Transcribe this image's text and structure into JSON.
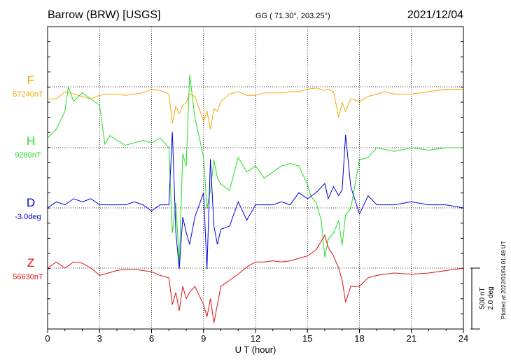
{
  "header": {
    "station": "Barrow (BRW)  [USGS]",
    "coords": "GG ( 71.30°, 203.25°)",
    "date": "2021/12/04"
  },
  "footer": {
    "plotted": "Plotted at 2022/01/04 01:49 UT"
  },
  "scale": {
    "nt": "500 nT",
    "deg": "2.0 deg"
  },
  "chart_data": {
    "type": "line",
    "xlabel": "U T (hour)",
    "xlim": [
      0,
      24
    ],
    "xticks": [
      "0",
      "3",
      "6",
      "9",
      "12",
      "15",
      "18",
      "21",
      "24"
    ],
    "grid": true,
    "series": [
      {
        "name": "F",
        "baseline": "57240nT",
        "color": "#f5a800",
        "x": [
          0,
          0.5,
          1,
          1.5,
          2,
          2.5,
          3,
          3.5,
          4,
          4.5,
          5,
          5.5,
          6,
          6.5,
          7,
          7.2,
          7.4,
          7.6,
          7.8,
          8,
          8.2,
          8.5,
          9,
          9.2,
          9.4,
          9.6,
          9.8,
          10,
          10.5,
          11,
          11.5,
          12,
          12.5,
          13,
          13.5,
          14,
          14.5,
          15,
          15.5,
          16,
          16.2,
          16.5,
          16.8,
          17,
          17.2,
          17.5,
          18,
          18.5,
          19,
          19.5,
          20,
          21,
          22,
          23,
          24
        ],
        "y": [
          -100,
          -100,
          -40,
          -60,
          -80,
          -100,
          -70,
          -60,
          -60,
          -70,
          -60,
          -50,
          -20,
          -30,
          -60,
          -300,
          -160,
          -220,
          -150,
          -130,
          -60,
          -80,
          -280,
          -200,
          -350,
          -180,
          -200,
          -120,
          -60,
          -40,
          -70,
          -70,
          -50,
          -50,
          -50,
          -40,
          -40,
          -20,
          -10,
          -30,
          -20,
          -40,
          -250,
          -130,
          -200,
          -100,
          -120,
          -80,
          -60,
          -40,
          -60,
          -60,
          -40,
          -20,
          -20
        ]
      },
      {
        "name": "H",
        "baseline": "9280nT",
        "color": "#22dd22",
        "x": [
          0,
          0.5,
          1,
          1.2,
          1.5,
          2,
          2.5,
          3,
          3.3,
          3.6,
          4,
          4.5,
          5,
          5.5,
          6,
          6.5,
          7,
          7.2,
          7.4,
          7.6,
          7.8,
          8,
          8.2,
          8.5,
          9,
          9.2,
          9.4,
          9.6,
          9.8,
          10,
          10.5,
          11,
          11.5,
          12,
          12.5,
          13,
          13.5,
          14,
          14.5,
          15,
          15.2,
          15.5,
          15.8,
          16,
          16.2,
          16.5,
          16.8,
          17,
          17.2,
          17.5,
          18,
          18.5,
          19,
          20,
          21,
          22,
          23,
          24
        ],
        "y": [
          80,
          150,
          300,
          500,
          380,
          450,
          400,
          350,
          30,
          100,
          60,
          20,
          40,
          60,
          40,
          80,
          0,
          -700,
          -450,
          -950,
          -50,
          -150,
          600,
          250,
          -80,
          -500,
          -350,
          -100,
          -250,
          -300,
          -350,
          -80,
          -200,
          -150,
          -250,
          -200,
          -150,
          -130,
          -150,
          -300,
          -400,
          -450,
          -600,
          -900,
          -750,
          -700,
          -600,
          -800,
          -550,
          -500,
          -100,
          -80,
          0,
          -30,
          0,
          -20,
          0,
          0
        ]
      },
      {
        "name": "D",
        "baseline": "-3.0deg",
        "color": "#0000dd",
        "x": [
          0,
          0.5,
          1,
          1.5,
          2,
          2.5,
          3,
          3.5,
          4,
          4.5,
          5,
          5.5,
          6,
          6.5,
          7,
          7.2,
          7.4,
          7.6,
          7.8,
          8,
          8.2,
          8.5,
          9,
          9.2,
          9.4,
          9.6,
          9.8,
          10,
          10.5,
          11,
          11.5,
          12,
          12.5,
          13,
          13.5,
          14,
          14.5,
          15,
          15.5,
          16,
          16.2,
          16.5,
          16.8,
          17,
          17.2,
          17.5,
          18,
          18.5,
          19,
          20,
          21,
          22,
          23,
          24
        ],
        "y": [
          0,
          0.2,
          0.1,
          0.3,
          0.2,
          0.3,
          0.1,
          0.1,
          0.1,
          0.1,
          0.2,
          0.1,
          -0.1,
          0.1,
          0.1,
          2.5,
          -0.8,
          -2.0,
          -0.3,
          -0.8,
          -1.2,
          -0.3,
          0.5,
          -2.0,
          1.6,
          -0.6,
          -1.2,
          -0.7,
          -0.6,
          0.2,
          -0.4,
          0.1,
          0.1,
          0.1,
          0.2,
          0.1,
          0.5,
          0.3,
          0.5,
          0.8,
          0.3,
          0.7,
          0.4,
          0.6,
          2.4,
          0.7,
          -0.2,
          0.4,
          0.1,
          0.1,
          0.2,
          0.1,
          0.1,
          0
        ]
      },
      {
        "name": "Z",
        "baseline": "56630nT",
        "color": "#dd1111",
        "x": [
          0,
          0.5,
          1,
          1.5,
          2,
          2.5,
          3,
          3.5,
          4,
          4.5,
          5,
          5.5,
          6,
          6.5,
          7,
          7.2,
          7.4,
          7.6,
          7.8,
          8,
          8.2,
          8.5,
          9,
          9.2,
          9.4,
          9.6,
          9.8,
          10,
          10.5,
          11,
          11.5,
          12,
          12.5,
          13,
          13.5,
          14,
          14.5,
          15,
          15.5,
          16,
          16.2,
          16.5,
          16.8,
          17,
          17.2,
          17.5,
          18,
          18.5,
          19,
          20,
          21,
          22,
          23,
          24
        ],
        "y": [
          0,
          50,
          0,
          50,
          40,
          0,
          -60,
          -40,
          -20,
          -10,
          -10,
          -20,
          -30,
          -60,
          -80,
          -300,
          -200,
          -350,
          -150,
          -250,
          -200,
          -150,
          -300,
          -400,
          -250,
          -450,
          -300,
          -150,
          -100,
          -50,
          10,
          50,
          50,
          60,
          50,
          60,
          80,
          100,
          150,
          270,
          170,
          100,
          0,
          -100,
          -280,
          -150,
          -150,
          -80,
          -60,
          -40,
          -50,
          -40,
          -20,
          0
        ]
      }
    ]
  }
}
